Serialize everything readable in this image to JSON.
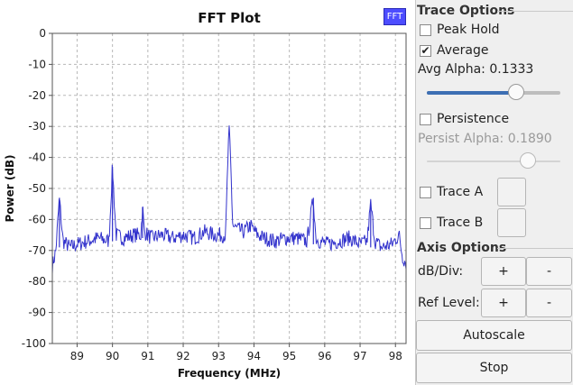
{
  "chart_data": {
    "type": "line",
    "title": "FFT Plot",
    "xlabel": "Frequency (MHz)",
    "ylabel": "Power (dB)",
    "xlim": [
      88.3,
      98.3
    ],
    "ylim": [
      -100,
      0
    ],
    "xticks": [
      89,
      90,
      91,
      92,
      93,
      94,
      95,
      96,
      97,
      98
    ],
    "yticks": [
      0,
      -10,
      -20,
      -30,
      -40,
      -50,
      -60,
      -70,
      -80,
      -90,
      -100
    ],
    "grid": true,
    "legend": "top-right",
    "series": [
      {
        "name": "FFT",
        "color": "#3333cc",
        "x": [
          88.3,
          88.4,
          88.5,
          88.6,
          88.8,
          89.0,
          89.3,
          89.6,
          89.9,
          90.0,
          90.1,
          90.3,
          90.6,
          90.8,
          90.85,
          90.9,
          91.1,
          91.4,
          91.7,
          92.0,
          92.3,
          92.6,
          92.9,
          93.2,
          93.27,
          93.3,
          93.33,
          93.4,
          93.5,
          93.7,
          93.9,
          94.1,
          94.3,
          94.6,
          94.9,
          95.2,
          95.5,
          95.68,
          95.75,
          95.85,
          96.1,
          96.4,
          96.7,
          97.0,
          97.2,
          97.3,
          97.42,
          97.6,
          97.9,
          98.1,
          98.2,
          98.3
        ],
        "y": [
          -75,
          -70,
          -53,
          -67,
          -69,
          -68,
          -67,
          -66,
          -67,
          -43,
          -65,
          -66,
          -65,
          -65,
          -56,
          -64,
          -66,
          -65,
          -66,
          -65,
          -66,
          -64,
          -65,
          -65,
          -38,
          -32,
          -38,
          -62,
          -63,
          -64,
          -62,
          -65,
          -66,
          -67,
          -66,
          -66,
          -67,
          -53,
          -66,
          -67,
          -68,
          -67,
          -66,
          -68,
          -67,
          -55,
          -67,
          -69,
          -68,
          -65,
          -72,
          -74
        ]
      }
    ]
  },
  "legend": {
    "label": "FFT",
    "color": "#4d4dff"
  },
  "trace_options": {
    "title": "Trace Options",
    "peak_hold": {
      "label": "Peak Hold",
      "checked": false
    },
    "average": {
      "label": "Average",
      "checked": true
    },
    "avg_alpha_label": "Avg Alpha: 0.1333",
    "avg_alpha_value": 0.1333,
    "persistence": {
      "label": "Persistence",
      "checked": false
    },
    "persist_alpha_label": "Persist Alpha: 0.1890",
    "persist_alpha_value": 0.189,
    "trace_a": {
      "label": "Trace A",
      "checked": false
    },
    "trace_b": {
      "label": "Trace B",
      "checked": false
    }
  },
  "axis_options": {
    "title": "Axis Options",
    "db_div_label": "dB/Div:",
    "ref_level_label": "Ref Level:",
    "plus": "+",
    "minus": "-"
  },
  "autoscale_label": "Autoscale",
  "stop_label": "Stop"
}
